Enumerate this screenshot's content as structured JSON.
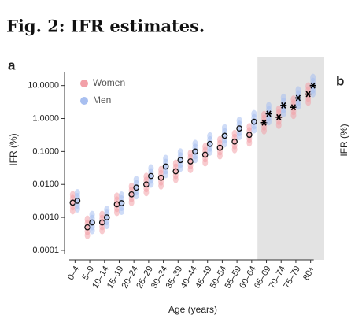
{
  "figure_title": "Fig. 2: IFR estimates.",
  "panel_b": {
    "label": "b",
    "y_label": "IFR (%)"
  },
  "chart_data": {
    "type": "scatter",
    "panel_label": "a",
    "x_label": "Age (years)",
    "y_label": "IFR (%)",
    "categories": [
      "0–4",
      "5–9",
      "10–14",
      "15–19",
      "20–24",
      "25–29",
      "30–34",
      "35–39",
      "40–44",
      "45–49",
      "50–54",
      "55–59",
      "60–64",
      "65–69",
      "70–74",
      "75–79",
      "80+"
    ],
    "series": [
      {
        "name": "Women",
        "color": "#f2a0a8",
        "values": [
          0.0028,
          0.0005,
          0.0007,
          0.0025,
          0.005,
          0.01,
          0.016,
          0.025,
          0.05,
          0.08,
          0.13,
          0.2,
          0.32,
          0.75,
          1.1,
          2.2,
          5.5
        ]
      },
      {
        "name": "Men",
        "color": "#a8bff0",
        "values": [
          0.0032,
          0.0007,
          0.001,
          0.0027,
          0.008,
          0.018,
          0.035,
          0.055,
          0.1,
          0.17,
          0.3,
          0.5,
          0.8,
          1.4,
          2.5,
          4.2,
          10
        ]
      }
    ],
    "y_log": true,
    "ylim": [
      8e-05,
      25
    ],
    "yticks": [
      {
        "value": 0.0001,
        "label": "0.0001"
      },
      {
        "value": 0.001,
        "label": "0.0010"
      },
      {
        "value": 0.01,
        "label": "0.0100"
      },
      {
        "value": 0.1,
        "label": "0.1000"
      },
      {
        "value": 1,
        "label": "1.0000"
      },
      {
        "value": 10,
        "label": "10.0000"
      }
    ],
    "shade_from_category": "65–69",
    "shade_color": "#e3e3e3",
    "legend": "top-left"
  }
}
